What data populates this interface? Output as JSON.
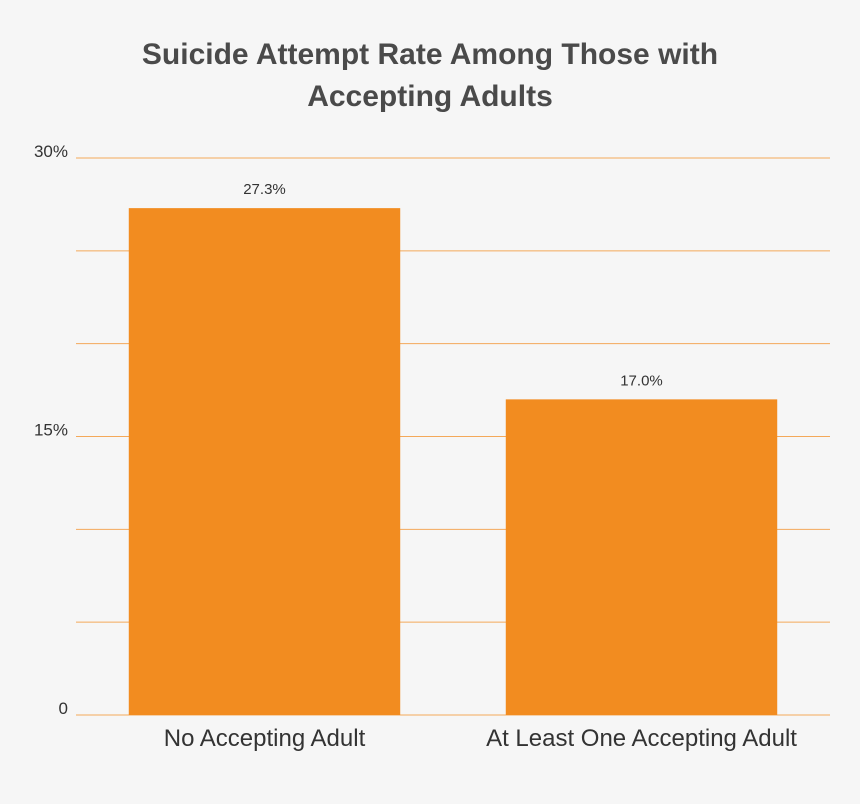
{
  "chart_data": {
    "type": "bar",
    "title_lines": [
      "Suicide Attempt Rate Among Those with",
      "Accepting Adults"
    ],
    "categories": [
      "No Accepting Adult",
      "At Least One Accepting Adult"
    ],
    "values": [
      27.3,
      17.0
    ],
    "data_labels": [
      "27.3%",
      "17.0%"
    ],
    "ylim": [
      0,
      30
    ],
    "yticks": [
      0,
      15,
      30
    ],
    "ytick_labels": [
      "0",
      "15%",
      "30%"
    ],
    "gridlines": [
      0,
      5,
      10,
      15,
      20,
      25,
      30
    ],
    "grid": true,
    "xlabel": "",
    "ylabel": "",
    "colors": {
      "bar": "#f28c20",
      "grid": "#f4a95a",
      "background": "#f6f6f6",
      "text": "#333333",
      "title": "#4a4a4a"
    }
  }
}
